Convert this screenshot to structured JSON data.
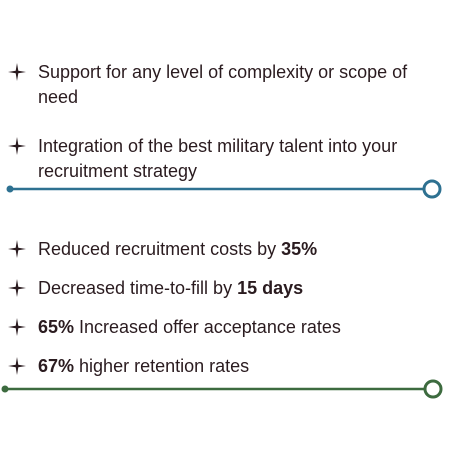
{
  "lists": [
    {
      "items": [
        {
          "parts": [
            {
              "text": "Support for any level of complexity or scope of need"
            }
          ]
        },
        {
          "parts": [
            {
              "text": "Integration of the best military talent into your recruitment strategy"
            }
          ]
        }
      ]
    },
    {
      "items": [
        {
          "parts": [
            {
              "text": "Reduced recruitment costs by "
            },
            {
              "text": "35%",
              "bold": true
            }
          ]
        },
        {
          "parts": [
            {
              "text": "Decreased time-to-fill by "
            },
            {
              "text": "15 days",
              "bold": true
            }
          ]
        },
        {
          "parts": [
            {
              "text": "65%",
              "bold": true
            },
            {
              "text": " Increased offer acceptance rates"
            }
          ]
        },
        {
          "parts": [
            {
              "text": "67%",
              "bold": true
            },
            {
              "text": " higher retention rates"
            }
          ]
        }
      ]
    }
  ]
}
